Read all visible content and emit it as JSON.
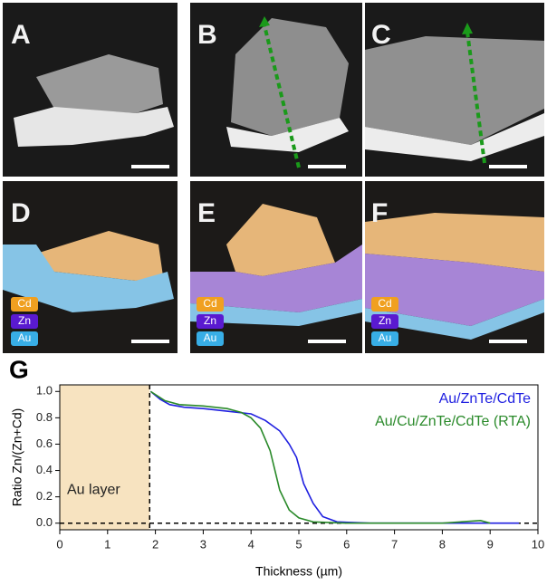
{
  "panels": [
    {
      "label": "A"
    },
    {
      "label": "B"
    },
    {
      "label": "C"
    },
    {
      "label": "D",
      "legend": [
        "Cd",
        "Zn",
        "Au"
      ]
    },
    {
      "label": "E",
      "legend": [
        "Cd",
        "Zn",
        "Au"
      ]
    },
    {
      "label": "F",
      "legend": [
        "Cd",
        "Zn",
        "Au"
      ]
    }
  ],
  "chart_data": {
    "type": "line",
    "title": "G",
    "x_label": "Thickness (µm)",
    "y_label": "Ratio Zn/(Zn+Cd)",
    "xlim": [
      0,
      10
    ],
    "ylim": [
      -0.05,
      1.05
    ],
    "xticks": [
      0,
      1,
      2,
      3,
      4,
      5,
      6,
      7,
      8,
      9,
      10
    ],
    "yticks": [
      {
        "value": 0,
        "label": "0.0"
      },
      0.2,
      0.4,
      0.6,
      0.8,
      {
        "value": 1,
        "label": "1.0"
      }
    ],
    "region": {
      "label": "Au layer",
      "x": [
        0,
        1.88
      ],
      "color": "#f7e3c0"
    },
    "zero_line": 0,
    "legend": "upper right",
    "series": [
      {
        "name": "Au/ZnTe/CdTe",
        "color": "#1f1fe0",
        "x": [
          1.9,
          2.1,
          2.3,
          2.6,
          3.0,
          3.5,
          4.0,
          4.3,
          4.6,
          4.8,
          4.95,
          5.1,
          5.3,
          5.5,
          5.8,
          6.5,
          8.0,
          9.6
        ],
        "values": [
          1.0,
          0.94,
          0.9,
          0.88,
          0.87,
          0.85,
          0.83,
          0.78,
          0.7,
          0.6,
          0.5,
          0.3,
          0.15,
          0.05,
          0.01,
          0,
          0,
          0
        ]
      },
      {
        "name": "Au/Cu/ZnTe/CdTe (RTA)",
        "color": "#2a8a2a",
        "x": [
          1.9,
          2.2,
          2.5,
          3.0,
          3.5,
          3.8,
          4.0,
          4.2,
          4.4,
          4.5,
          4.6,
          4.8,
          5.0,
          5.3,
          6.0,
          8.0,
          8.8,
          9.0
        ],
        "values": [
          1.0,
          0.93,
          0.9,
          0.89,
          0.87,
          0.84,
          0.8,
          0.72,
          0.55,
          0.4,
          0.25,
          0.1,
          0.04,
          0.01,
          0,
          0,
          0.02,
          0
        ]
      }
    ]
  }
}
